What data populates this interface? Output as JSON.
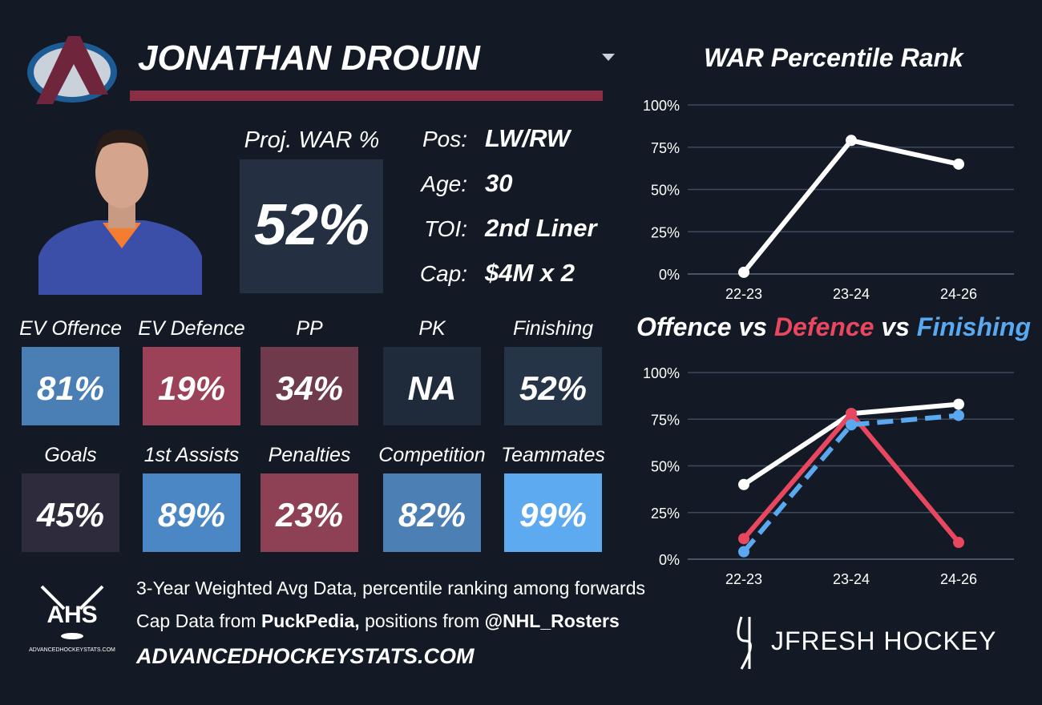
{
  "header": {
    "name": "JONATHAN DROUIN"
  },
  "proj": {
    "label": "Proj. WAR %",
    "value": "52%"
  },
  "info": [
    {
      "label": "Pos:",
      "value": "LW/RW"
    },
    {
      "label": "Age:",
      "value": "30"
    },
    {
      "label": "TOI:",
      "value": "2nd Liner"
    },
    {
      "label": "Cap:",
      "value": "$4M x 2"
    }
  ],
  "tiles": [
    {
      "label": "EV Offence",
      "value": "81%",
      "color": "#4a7fb5"
    },
    {
      "label": "EV Defence",
      "value": "19%",
      "color": "#9b4258"
    },
    {
      "label": "PP",
      "value": "34%",
      "color": "#6f3a4c"
    },
    {
      "label": "PK",
      "value": "NA",
      "color": "#1f2a3a"
    },
    {
      "label": "Finishing",
      "value": "52%",
      "color": "#263447"
    },
    {
      "label": "Goals",
      "value": "45%",
      "color": "#2e2b3c"
    },
    {
      "label": "1st Assists",
      "value": "89%",
      "color": "#4b87c4"
    },
    {
      "label": "Penalties",
      "value": "23%",
      "color": "#8e4055"
    },
    {
      "label": "Competition",
      "value": "82%",
      "color": "#4c7fb3"
    },
    {
      "label": "Teammates",
      "value": "99%",
      "color": "#5eaaf0"
    }
  ],
  "footer": {
    "line1": "3-Year Weighted Avg Data, percentile ranking among forwards",
    "line2": [
      "Cap Data from ",
      "PuckPedia,",
      " positions from ",
      "@NHL_Rosters"
    ],
    "site": "ADVANCEDHOCKEYSTATS.COM",
    "logo": "AHS",
    "logo_small": "ADVANCEDHOCKEYSTATS.COM",
    "brand": "JFRESH HOCKEY"
  },
  "chart_data": [
    {
      "type": "line",
      "title": "WAR Percentile Rank",
      "categories": [
        "22-23",
        "23-24",
        "24-26"
      ],
      "series": [
        {
          "name": "WAR",
          "color": "#ffffff",
          "values": [
            1,
            79,
            65
          ]
        }
      ],
      "ylim": [
        0,
        100
      ],
      "yticks": [
        {
          "value": 0,
          "label": "0%"
        },
        {
          "value": 25,
          "label": "25%"
        },
        {
          "value": 50,
          "label": "50%"
        },
        {
          "value": 75,
          "label": "75%"
        },
        {
          "value": 100,
          "label": "100%"
        }
      ],
      "grid": true
    },
    {
      "type": "line",
      "title_joiner": "vs",
      "categories": [
        "22-23",
        "23-24",
        "24-26"
      ],
      "series": [
        {
          "name": "Offence",
          "color": "#ffffff",
          "values": [
            40,
            78,
            83
          ]
        },
        {
          "name": "Defence",
          "color": "#e8475f",
          "values": [
            11,
            78,
            9
          ]
        },
        {
          "name": "Finishing",
          "color": "#5aa9f0",
          "values": [
            4,
            72,
            77
          ],
          "dashed": true
        }
      ],
      "ylim": [
        0,
        100
      ],
      "yticks": [
        {
          "value": 0,
          "label": "0%"
        },
        {
          "value": 25,
          "label": "25%"
        },
        {
          "value": 50,
          "label": "50%"
        },
        {
          "value": 75,
          "label": "75%"
        },
        {
          "value": 100,
          "label": "100%"
        }
      ],
      "grid": true
    }
  ]
}
